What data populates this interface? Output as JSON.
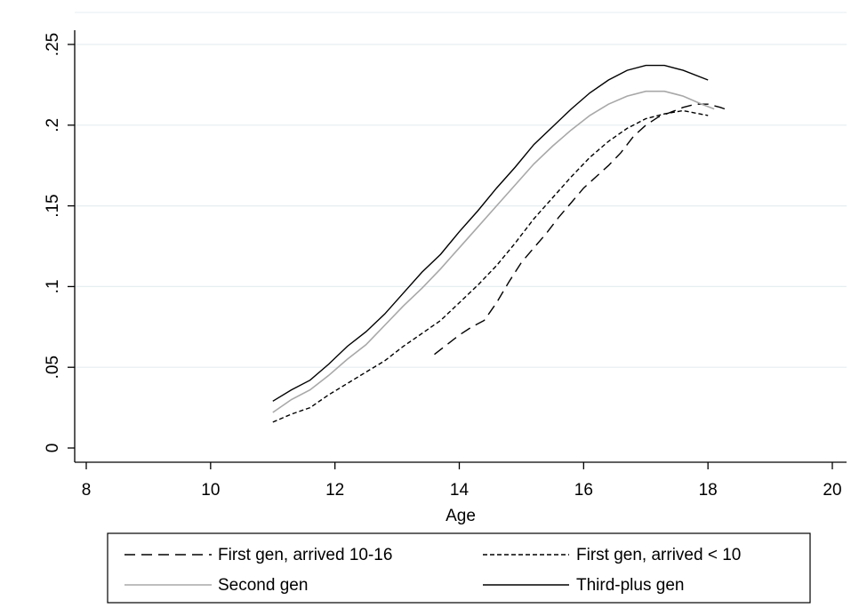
{
  "chart_data": {
    "type": "line",
    "xlabel": "Age",
    "ylabel": "",
    "xlim": [
      8,
      20
    ],
    "ylim": [
      0,
      0.25
    ],
    "x_ticks": [
      8,
      10,
      12,
      14,
      16,
      18,
      20
    ],
    "x_tick_labels": [
      "8",
      "10",
      "12",
      "14",
      "16",
      "18",
      "20"
    ],
    "y_ticks": [
      0,
      0.05,
      0.1,
      0.15,
      0.2,
      0.25
    ],
    "y_tick_labels": [
      "0",
      ".05",
      ".1",
      ".15",
      ".2",
      ".25"
    ],
    "grid": "horizontal",
    "legend_position": "bottom",
    "series": [
      {
        "name": "First gen, arrived 10-16",
        "style": "long-dash",
        "color": "#000000",
        "x": [
          13.6,
          13.8,
          14.0,
          14.2,
          14.4,
          14.6,
          14.8,
          15.0,
          15.2,
          15.4,
          15.6,
          15.8,
          16.0,
          16.2,
          16.4,
          16.6,
          16.8,
          17.0,
          17.2,
          17.4,
          17.6,
          17.8,
          18.0,
          18.2,
          18.35
        ],
        "y": [
          0.058,
          0.064,
          0.07,
          0.075,
          0.079,
          0.09,
          0.103,
          0.115,
          0.124,
          0.133,
          0.143,
          0.152,
          0.161,
          0.168,
          0.175,
          0.183,
          0.193,
          0.2,
          0.205,
          0.208,
          0.211,
          0.213,
          0.213,
          0.211,
          0.209
        ]
      },
      {
        "name": "First gen, arrived < 10",
        "style": "short-dash",
        "color": "#000000",
        "x": [
          11.0,
          11.3,
          11.6,
          11.9,
          12.2,
          12.5,
          12.8,
          13.1,
          13.4,
          13.7,
          14.0,
          14.3,
          14.6,
          14.9,
          15.2,
          15.5,
          15.8,
          16.1,
          16.4,
          16.7,
          17.0,
          17.3,
          17.6,
          18.0
        ],
        "y": [
          0.016,
          0.021,
          0.025,
          0.033,
          0.04,
          0.047,
          0.054,
          0.063,
          0.071,
          0.079,
          0.09,
          0.101,
          0.113,
          0.127,
          0.142,
          0.155,
          0.168,
          0.18,
          0.19,
          0.198,
          0.204,
          0.207,
          0.209,
          0.206
        ]
      },
      {
        "name": "Second gen",
        "style": "solid",
        "color": "#a8a8a8",
        "x": [
          11.0,
          11.3,
          11.6,
          11.9,
          12.2,
          12.5,
          12.8,
          13.1,
          13.4,
          13.7,
          14.0,
          14.3,
          14.6,
          14.9,
          15.2,
          15.5,
          15.8,
          16.1,
          16.4,
          16.7,
          17.0,
          17.3,
          17.6,
          17.9,
          18.1
        ],
        "y": [
          0.022,
          0.03,
          0.036,
          0.045,
          0.055,
          0.064,
          0.076,
          0.088,
          0.099,
          0.111,
          0.124,
          0.137,
          0.15,
          0.163,
          0.176,
          0.187,
          0.197,
          0.206,
          0.213,
          0.218,
          0.221,
          0.221,
          0.218,
          0.213,
          0.21
        ]
      },
      {
        "name": "Third-plus gen",
        "style": "solid",
        "color": "#000000",
        "x": [
          11.0,
          11.3,
          11.6,
          11.9,
          12.2,
          12.5,
          12.8,
          13.1,
          13.4,
          13.7,
          14.0,
          14.3,
          14.6,
          14.9,
          15.2,
          15.5,
          15.8,
          16.1,
          16.4,
          16.7,
          17.0,
          17.3,
          17.6,
          18.0
        ],
        "y": [
          0.029,
          0.036,
          0.042,
          0.052,
          0.063,
          0.072,
          0.083,
          0.096,
          0.109,
          0.12,
          0.134,
          0.147,
          0.161,
          0.174,
          0.188,
          0.199,
          0.21,
          0.22,
          0.228,
          0.234,
          0.237,
          0.237,
          0.234,
          0.228
        ]
      }
    ]
  }
}
